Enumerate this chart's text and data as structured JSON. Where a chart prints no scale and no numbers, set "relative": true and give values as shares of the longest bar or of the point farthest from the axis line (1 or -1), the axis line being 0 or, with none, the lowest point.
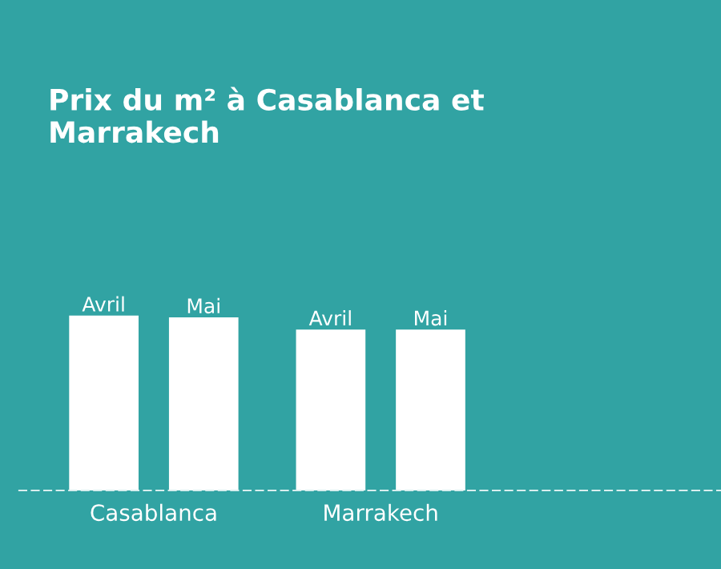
{
  "chart_data": {
    "type": "bar",
    "title": "Prix du m² à Casablanca et\nMarrakech",
    "relative": true,
    "categories": [
      "Casablanca",
      "Marrakech"
    ],
    "series": [
      {
        "name": "Avril",
        "color": "#ffffff",
        "values": [
          1,
          0.92
        ]
      },
      {
        "name": "Mai",
        "color": "#ffffff",
        "values": [
          0.99,
          0.92
        ]
      }
    ],
    "grid": false,
    "legend": false
  }
}
